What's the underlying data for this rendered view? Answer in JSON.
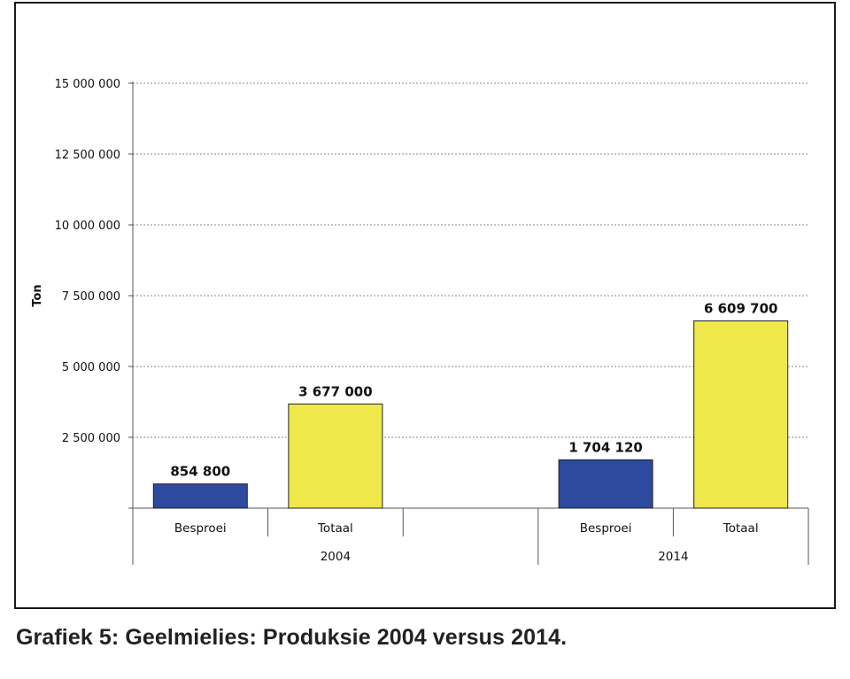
{
  "caption": "Grafiek 5: Geelmielies: Produksie 2004 versus 2014.",
  "colors": {
    "besproei": "#2e4a9e",
    "totaal": "#f0e84a",
    "bar_outline": "#222222",
    "gridline": "#8a8a8a",
    "axis": "#555555"
  },
  "chart_data": {
    "type": "bar",
    "ylabel": "Ton",
    "ylim": [
      0,
      15000000
    ],
    "yticks": [
      {
        "value": 2500000,
        "label": "2 500 000"
      },
      {
        "value": 5000000,
        "label": "5 000 000"
      },
      {
        "value": 7500000,
        "label": "7 500 000"
      },
      {
        "value": 10000000,
        "label": "10 000 000"
      },
      {
        "value": 12500000,
        "label": "12 500 000"
      },
      {
        "value": 15000000,
        "label": "15 000 000"
      }
    ],
    "grid": true,
    "groups": [
      {
        "name": "2004",
        "categories": [
          "Besproei",
          "Totaal",
          ""
        ],
        "bars": [
          {
            "category": "Besproei",
            "value": 854800,
            "label": "854 800"
          },
          {
            "category": "Totaal",
            "value": 3677000,
            "label": "3 677 000"
          }
        ]
      },
      {
        "name": "2014",
        "categories": [
          "Besproei",
          "Totaal"
        ],
        "bars": [
          {
            "category": "Besproei",
            "value": 1704120,
            "label": "1 704 120"
          },
          {
            "category": "Totaal",
            "value": 6609700,
            "label": "6 609 700"
          }
        ]
      }
    ]
  }
}
